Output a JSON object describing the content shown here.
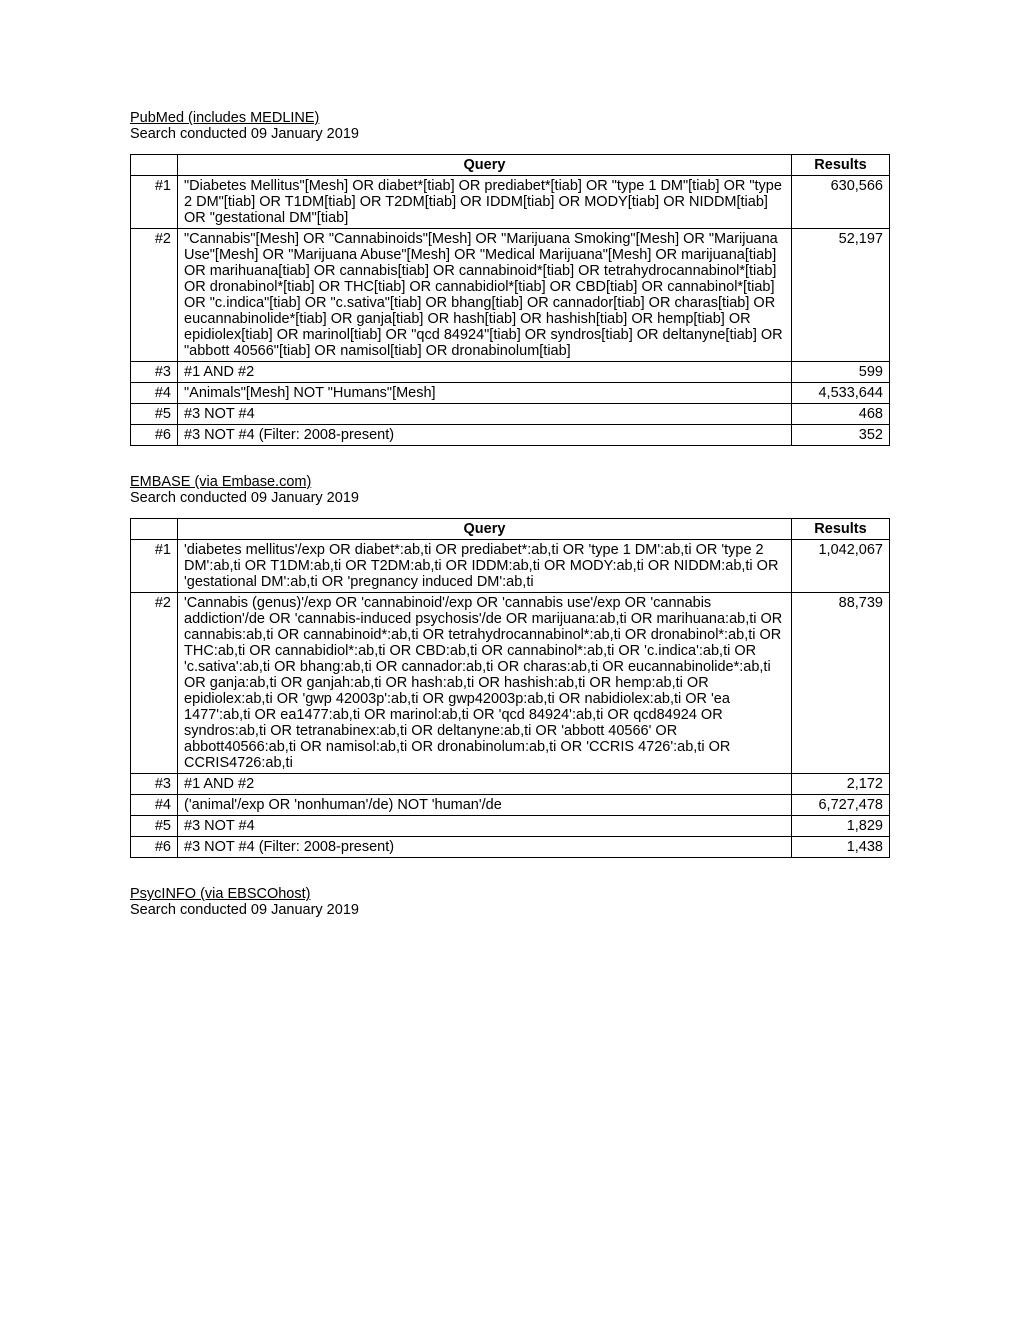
{
  "sections": [
    {
      "title": "PubMed (includes MEDLINE)",
      "date": "Search conducted 09 January 2019",
      "headers": {
        "query": "Query",
        "results": "Results"
      },
      "rows": [
        {
          "id": "#1",
          "query": "\"Diabetes Mellitus\"[Mesh] OR diabet*[tiab] OR prediabet*[tiab] OR \"type 1 DM\"[tiab] OR \"type 2 DM\"[tiab] OR T1DM[tiab] OR T2DM[tiab] OR IDDM[tiab] OR MODY[tiab] OR NIDDM[tiab] OR \"gestational DM\"[tiab]",
          "results": "630,566"
        },
        {
          "id": "#2",
          "query": "\"Cannabis\"[Mesh] OR \"Cannabinoids\"[Mesh] OR \"Marijuana Smoking\"[Mesh] OR \"Marijuana Use\"[Mesh] OR \"Marijuana Abuse\"[Mesh] OR \"Medical Marijuana\"[Mesh] OR marijuana[tiab] OR marihuana[tiab] OR cannabis[tiab] OR cannabinoid*[tiab] OR tetrahydrocannabinol*[tiab] OR dronabinol*[tiab] OR THC[tiab] OR cannabidiol*[tiab] OR CBD[tiab] OR cannabinol*[tiab] OR \"c.indica\"[tiab] OR \"c.sativa\"[tiab] OR bhang[tiab] OR cannador[tiab] OR charas[tiab] OR eucannabinolide*[tiab] OR ganja[tiab] OR hash[tiab] OR hashish[tiab] OR hemp[tiab] OR epidiolex[tiab] OR marinol[tiab] OR \"qcd 84924\"[tiab] OR syndros[tiab] OR deltanyne[tiab] OR \"abbott 40566\"[tiab] OR namisol[tiab] OR dronabinolum[tiab]",
          "results": "52,197"
        },
        {
          "id": "#3",
          "query": "#1 AND #2",
          "results": "599"
        },
        {
          "id": "#4",
          "query": "\"Animals\"[Mesh] NOT \"Humans\"[Mesh]",
          "results": "4,533,644"
        },
        {
          "id": "#5",
          "query": "#3 NOT #4",
          "results": "468"
        },
        {
          "id": "#6",
          "query": "#3 NOT #4 (Filter: 2008-present)",
          "results": "352"
        }
      ]
    },
    {
      "title": "EMBASE (via Embase.com)",
      "date": "Search conducted 09 January 2019",
      "headers": {
        "query": "Query",
        "results": "Results"
      },
      "rows": [
        {
          "id": "#1",
          "query": "'diabetes mellitus'/exp OR diabet*:ab,ti OR prediabet*:ab,ti OR 'type 1 DM':ab,ti OR 'type 2 DM':ab,ti OR T1DM:ab,ti OR T2DM:ab,ti OR IDDM:ab,ti OR MODY:ab,ti OR NIDDM:ab,ti OR 'gestational DM':ab,ti OR 'pregnancy induced DM':ab,ti",
          "results": "1,042,067"
        },
        {
          "id": "#2",
          "query": "'Cannabis (genus)'/exp OR 'cannabinoid'/exp OR 'cannabis use'/exp OR 'cannabis addiction'/de OR 'cannabis-induced psychosis'/de OR marijuana:ab,ti OR marihuana:ab,ti OR cannabis:ab,ti OR cannabinoid*:ab,ti OR tetrahydrocannabinol*:ab,ti OR dronabinol*:ab,ti OR THC:ab,ti OR cannabidiol*:ab,ti OR CBD:ab,ti OR cannabinol*:ab,ti OR 'c.indica':ab,ti OR 'c.sativa':ab,ti OR bhang:ab,ti OR cannador:ab,ti OR charas:ab,ti OR eucannabinolide*:ab,ti OR ganja:ab,ti OR ganjah:ab,ti OR hash:ab,ti OR hashish:ab,ti OR hemp:ab,ti OR epidiolex:ab,ti OR 'gwp 42003p':ab,ti OR gwp42003p:ab,ti OR nabidiolex:ab,ti OR 'ea 1477':ab,ti OR ea1477:ab,ti OR marinol:ab,ti OR 'qcd 84924':ab,ti OR qcd84924 OR syndros:ab,ti OR tetranabinex:ab,ti OR deltanyne:ab,ti OR 'abbott 40566' OR abbott40566:ab,ti OR namisol:ab,ti OR dronabinolum:ab,ti OR 'CCRIS 4726':ab,ti OR CCRIS4726:ab,ti",
          "results": "88,739"
        },
        {
          "id": "#3",
          "query": "#1 AND #2",
          "results": "2,172"
        },
        {
          "id": "#4",
          "query": "('animal'/exp OR 'nonhuman'/de) NOT 'human'/de",
          "results": "6,727,478"
        },
        {
          "id": "#5",
          "query": "#3 NOT #4",
          "results": "1,829"
        },
        {
          "id": "#6",
          "query": "#3 NOT #4 (Filter: 2008-present)",
          "results": "1,438"
        }
      ]
    }
  ],
  "footer": {
    "title": "PsycINFO (via EBSCOhost)",
    "date": "Search conducted 09 January 2019"
  }
}
